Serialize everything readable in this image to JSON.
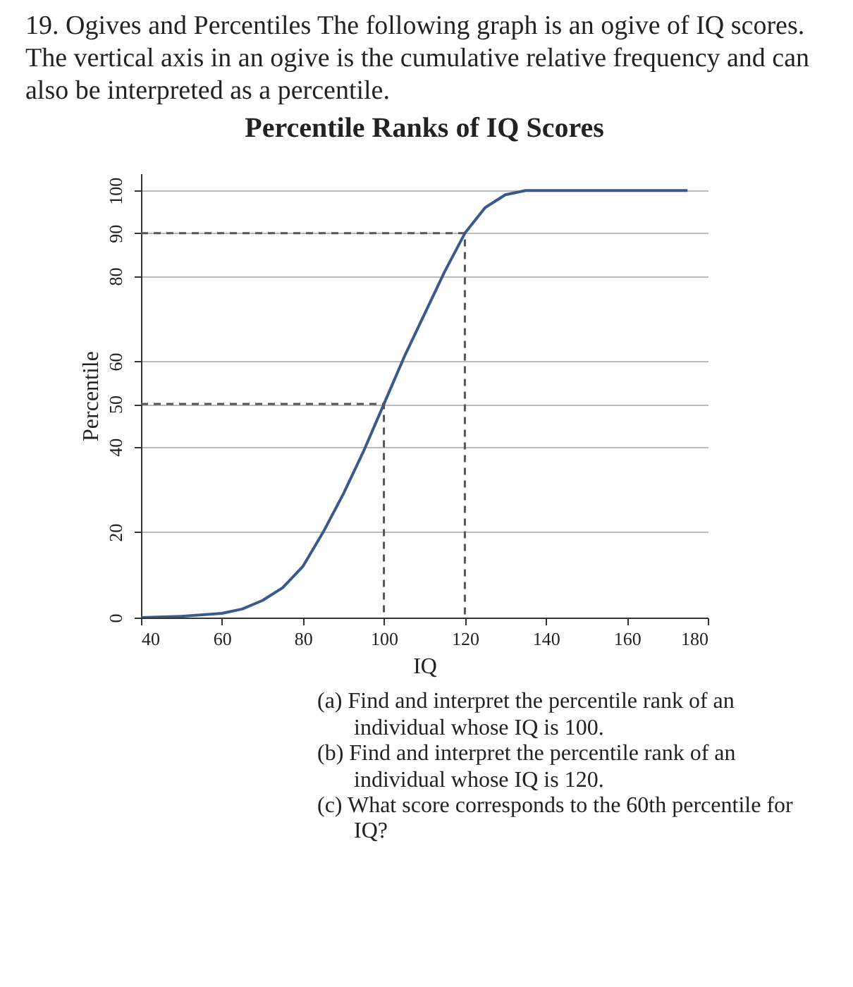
{
  "chart_data": {
    "type": "line",
    "title": "Percentile Ranks of IQ Scores",
    "xlabel": "IQ",
    "ylabel": "Percentile",
    "annotations": [
      "19. Ogives and Percentiles The following graph is an ogive of IQ scores. The vertical axis in an ogive is the cumulative relative frequency and can also be interpreted as a percentile.",
      "(a) Find and interpret the percentile rank of an individual whose IQ is 100.",
      "(b) Find and interpret the percentile rank of an individual whose IQ is 120.",
      "(c) What score corresponds to the 60th percentile for IQ?"
    ],
    "xlim": [
      40,
      180
    ],
    "ylim": [
      0,
      104
    ],
    "xticks": [
      40,
      60,
      80,
      100,
      120,
      140,
      160,
      180
    ],
    "yticks": [
      0,
      20,
      40,
      50,
      60,
      80,
      90,
      100
    ],
    "grid": "y",
    "series": [
      {
        "color": "#3a5a8c",
        "line_style": "solid",
        "x": [
          40,
          50,
          60,
          65,
          70,
          75,
          80,
          85,
          90,
          95,
          100,
          105,
          110,
          115,
          120,
          125,
          130,
          135,
          140,
          175
        ],
        "values": [
          0,
          0.3,
          1,
          2,
          4,
          7,
          12,
          20,
          29,
          39,
          50,
          61,
          71,
          81,
          90,
          96,
          99,
          100,
          100,
          100
        ]
      },
      {
        "color": "#555555",
        "line_style": "dashed",
        "x": [
          40,
          100,
          100
        ],
        "values": [
          50,
          50,
          0
        ]
      },
      {
        "color": "#555555",
        "line_style": "dashed",
        "x": [
          40,
          120,
          120
        ],
        "values": [
          90,
          90,
          0
        ]
      }
    ]
  }
}
